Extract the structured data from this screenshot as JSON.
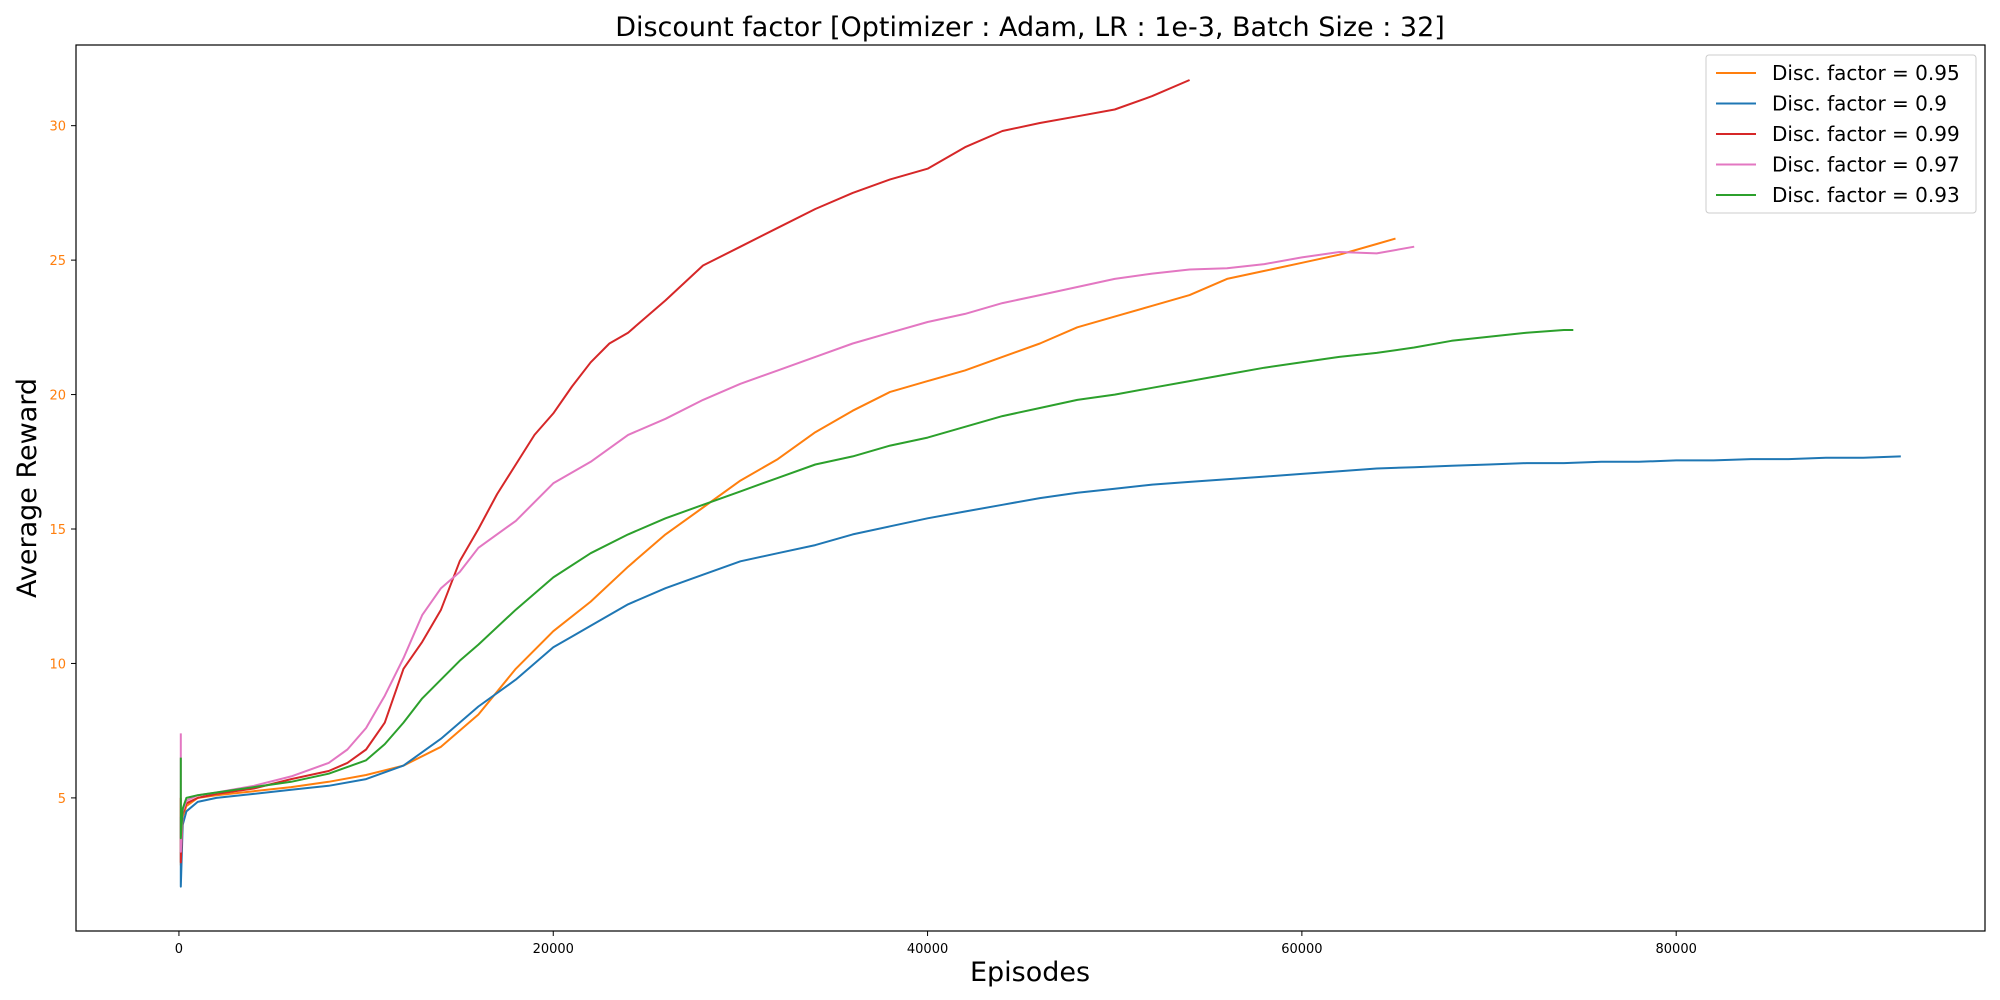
{
  "chart_data": {
    "type": "line",
    "title": "Discount factor [Optimizer : Adam, LR : 1e-3, Batch Size : 32]",
    "xlabel": "Episodes",
    "ylabel": "Average Reward",
    "xlim": [
      -5500,
      96500
    ],
    "ylim": [
      0.05,
      33.0
    ],
    "xticks": [
      0,
      20000,
      40000,
      60000,
      80000
    ],
    "yticks": [
      5,
      10,
      15,
      20,
      25,
      30
    ],
    "ytick_color": "#ff7f0e",
    "xtick_color": "#000000",
    "grid": false,
    "legend_position": "top-right",
    "series": [
      {
        "name": "Disc. factor = 0.95",
        "color": "#ff7f0e",
        "x": [
          100,
          100,
          200,
          400,
          1000,
          2000,
          4000,
          6000,
          8000,
          10000,
          12000,
          14000,
          16000,
          18000,
          20000,
          22000,
          24000,
          26000,
          28000,
          30000,
          32000,
          34000,
          36000,
          38000,
          40000,
          42000,
          44000,
          46000,
          48000,
          50000,
          52000,
          54000,
          56000,
          58000,
          60000,
          62000,
          64000,
          65000
        ],
        "y": [
          5.0,
          2.5,
          4.3,
          4.7,
          5.0,
          5.1,
          5.25,
          5.4,
          5.6,
          5.85,
          6.2,
          6.9,
          8.1,
          9.8,
          11.2,
          12.3,
          13.6,
          14.8,
          15.8,
          16.8,
          17.6,
          18.6,
          19.4,
          20.1,
          20.5,
          20.9,
          21.4,
          21.9,
          22.5,
          22.9,
          23.3,
          23.7,
          24.3,
          24.6,
          24.9,
          25.2,
          25.6,
          25.8
        ]
      },
      {
        "name": "Disc. factor = 0.9",
        "color": "#1f77b4",
        "x": [
          100,
          100,
          200,
          400,
          1000,
          2000,
          4000,
          6000,
          8000,
          10000,
          12000,
          14000,
          15000,
          16000,
          18000,
          20000,
          22000,
          24000,
          26000,
          28000,
          30000,
          32000,
          34000,
          36000,
          38000,
          40000,
          42000,
          44000,
          46000,
          48000,
          50000,
          52000,
          54000,
          56000,
          58000,
          60000,
          62000,
          64000,
          66000,
          68000,
          70000,
          72000,
          74000,
          76000,
          78000,
          80000,
          82000,
          84000,
          86000,
          88000,
          90000,
          92000
        ],
        "y": [
          4.3,
          1.7,
          4.0,
          4.5,
          4.85,
          5.0,
          5.15,
          5.3,
          5.45,
          5.7,
          6.2,
          7.2,
          7.8,
          8.4,
          9.4,
          10.6,
          11.4,
          12.2,
          12.8,
          13.3,
          13.8,
          14.1,
          14.4,
          14.8,
          15.1,
          15.4,
          15.65,
          15.9,
          16.15,
          16.35,
          16.5,
          16.65,
          16.75,
          16.85,
          16.95,
          17.05,
          17.15,
          17.25,
          17.3,
          17.35,
          17.4,
          17.45,
          17.45,
          17.5,
          17.5,
          17.55,
          17.55,
          17.6,
          17.6,
          17.65,
          17.65,
          17.7
        ]
      },
      {
        "name": "Disc. factor = 0.99",
        "color": "#d62728",
        "x": [
          100,
          100,
          200,
          400,
          1000,
          2000,
          4000,
          6000,
          8000,
          9000,
          10000,
          11000,
          12000,
          13000,
          14000,
          15000,
          16000,
          17000,
          18000,
          19000,
          20000,
          21000,
          22000,
          23000,
          24000,
          26000,
          28000,
          30000,
          32000,
          34000,
          36000,
          38000,
          40000,
          42000,
          44000,
          46000,
          48000,
          50000,
          52000,
          54000
        ],
        "y": [
          5.0,
          2.6,
          4.4,
          4.8,
          5.0,
          5.15,
          5.35,
          5.7,
          6.0,
          6.3,
          6.8,
          7.8,
          9.8,
          10.8,
          12.0,
          13.8,
          15.0,
          16.3,
          17.4,
          18.5,
          19.3,
          20.3,
          21.2,
          21.9,
          22.3,
          23.5,
          24.8,
          25.5,
          26.2,
          26.9,
          27.5,
          28.0,
          28.4,
          29.2,
          29.8,
          30.1,
          30.35,
          30.6,
          31.1,
          31.7
        ]
      },
      {
        "name": "Disc. factor = 0.97",
        "color": "#e377c2",
        "x": [
          100,
          100,
          200,
          400,
          1000,
          2000,
          4000,
          6000,
          8000,
          9000,
          10000,
          11000,
          12000,
          13000,
          14000,
          15000,
          16000,
          18000,
          20000,
          22000,
          24000,
          26000,
          28000,
          30000,
          32000,
          34000,
          36000,
          38000,
          40000,
          42000,
          44000,
          46000,
          48000,
          50000,
          52000,
          54000,
          56000,
          58000,
          60000,
          62000,
          64000,
          66000
        ],
        "y": [
          7.4,
          3.0,
          4.5,
          4.9,
          5.1,
          5.2,
          5.45,
          5.8,
          6.3,
          6.8,
          7.6,
          8.8,
          10.2,
          11.8,
          12.8,
          13.4,
          14.3,
          15.3,
          16.7,
          17.5,
          18.5,
          19.1,
          19.8,
          20.4,
          20.9,
          21.4,
          21.9,
          22.3,
          22.7,
          23.0,
          23.4,
          23.7,
          24.0,
          24.3,
          24.5,
          24.65,
          24.7,
          24.85,
          25.1,
          25.3,
          25.25,
          25.5
        ]
      },
      {
        "name": "Disc. factor = 0.93",
        "color": "#2ca02c",
        "x": [
          100,
          100,
          200,
          400,
          1000,
          2000,
          4000,
          6000,
          8000,
          10000,
          11000,
          12000,
          13000,
          14000,
          15000,
          16000,
          18000,
          20000,
          22000,
          24000,
          26000,
          28000,
          30000,
          32000,
          34000,
          36000,
          38000,
          40000,
          42000,
          44000,
          46000,
          48000,
          50000,
          52000,
          54000,
          56000,
          58000,
          60000,
          62000,
          64000,
          66000,
          68000,
          70000,
          72000,
          74000,
          74500
        ],
        "y": [
          6.5,
          3.5,
          4.6,
          5.0,
          5.1,
          5.2,
          5.4,
          5.6,
          5.9,
          6.4,
          7.0,
          7.8,
          8.7,
          9.4,
          10.1,
          10.7,
          12.0,
          13.2,
          14.1,
          14.8,
          15.4,
          15.9,
          16.4,
          16.9,
          17.4,
          17.7,
          18.1,
          18.4,
          18.8,
          19.2,
          19.5,
          19.8,
          20.0,
          20.25,
          20.5,
          20.75,
          21.0,
          21.2,
          21.4,
          21.55,
          21.75,
          22.0,
          22.15,
          22.3,
          22.4,
          22.4
        ]
      }
    ]
  }
}
